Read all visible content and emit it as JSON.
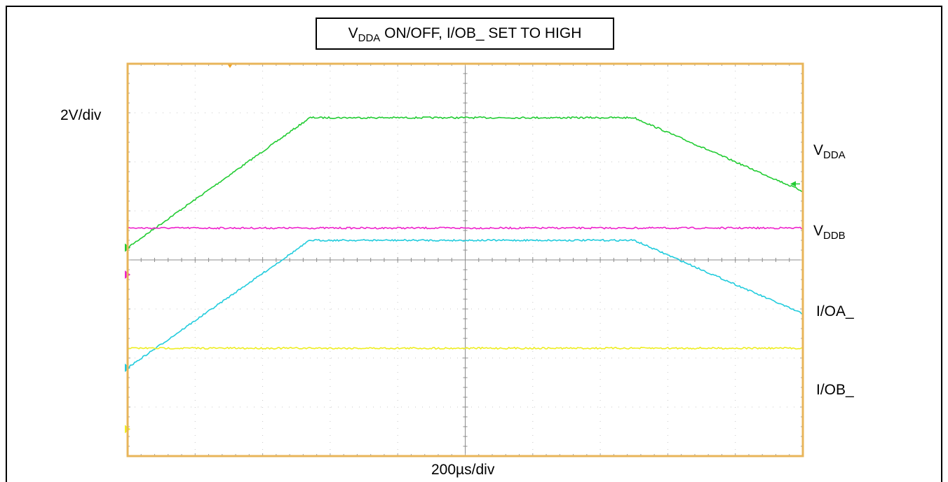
{
  "chart_data": {
    "type": "line",
    "title": {
      "main": "V",
      "sub": "DDA",
      "rest": " ON/OFF, I/OB_ SET TO HIGH"
    },
    "xlabel": "200µs/div",
    "ylabel": "2V/div",
    "x_divisions": 10,
    "y_divisions": 8,
    "x_unit": "div",
    "y_unit": "div",
    "series": [
      {
        "name": {
          "main": "V",
          "sub": "DDA"
        },
        "color": "#22cc33",
        "x": [
          0,
          2.7,
          7.5,
          10
        ],
        "y": [
          4.25,
          6.9,
          6.9,
          5.4
        ],
        "marker_level": 4.25
      },
      {
        "name": {
          "main": "V",
          "sub": "DDB"
        },
        "color": "#ee22cc",
        "x": [
          0,
          10
        ],
        "y": [
          4.65,
          4.65
        ],
        "marker_level": 3.7
      },
      {
        "name": {
          "main": "I/OA_",
          "sub": ""
        },
        "color": "#22ccdd",
        "x": [
          0,
          2.7,
          7.5,
          10
        ],
        "y": [
          1.8,
          4.4,
          4.4,
          2.9
        ],
        "marker_level": 1.8
      },
      {
        "name": {
          "main": "I/OB_",
          "sub": ""
        },
        "color": "#eeee22",
        "x": [
          0,
          10
        ],
        "y": [
          2.2,
          2.2
        ],
        "marker_level": 0.55
      }
    ],
    "grid": true,
    "frame_color": "#e8b55a",
    "trigger_color": "#f0a020"
  }
}
